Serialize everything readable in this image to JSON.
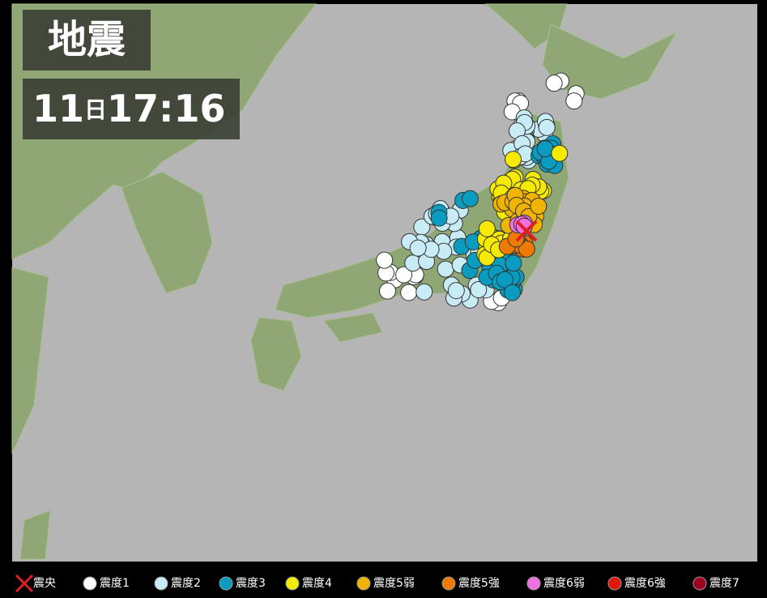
{
  "header": {
    "title": "地震",
    "day": "11",
    "day_unit": "日",
    "time": "17:16"
  },
  "legend": [
    {
      "label": "震央",
      "color": "#e02020"
    },
    {
      "label": "震度1",
      "color": "#ffffff"
    },
    {
      "label": "震度2",
      "color": "#c8ecf6"
    },
    {
      "label": "震度3",
      "color": "#0a9cc0"
    },
    {
      "label": "震度4",
      "color": "#f5ea00"
    },
    {
      "label": "震度5弱",
      "color": "#f0b400"
    },
    {
      "label": "震度5強",
      "color": "#ee7a00"
    },
    {
      "label": "震度6弱",
      "color": "#f070e0"
    },
    {
      "label": "震度6強",
      "color": "#e01808"
    },
    {
      "label": "震度7",
      "color": "#a00020"
    }
  ]
}
